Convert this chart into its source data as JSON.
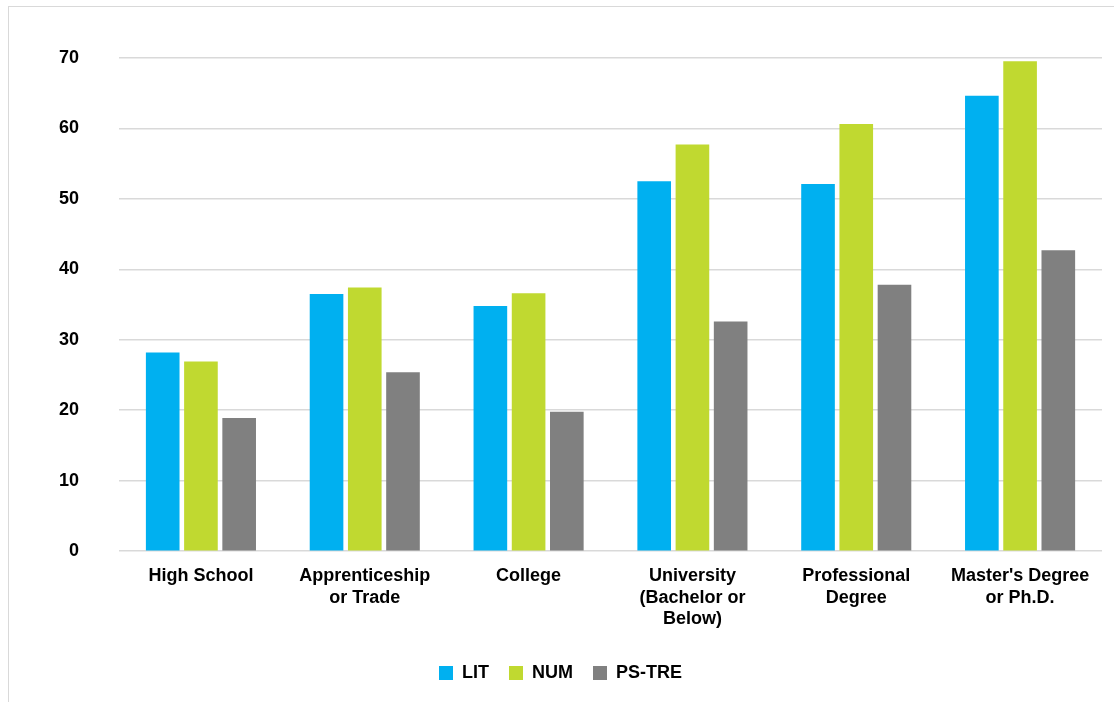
{
  "chart_data": {
    "type": "bar",
    "categories": [
      "High School",
      "Apprenticeship or Trade",
      "College",
      "University (Bachelor or Below)",
      "Professional Degree",
      "Master's Degree or Ph.D."
    ],
    "series": [
      {
        "name": "LIT",
        "color": "#00b0f0",
        "values": [
          28.2,
          36.5,
          34.8,
          52.5,
          52.1,
          64.6
        ]
      },
      {
        "name": "NUM",
        "color": "#c0d930",
        "values": [
          26.9,
          37.4,
          36.6,
          57.7,
          60.6,
          69.5
        ]
      },
      {
        "name": "PS-TRE",
        "color": "#808080",
        "values": [
          18.9,
          25.4,
          19.8,
          32.6,
          37.8,
          42.7
        ]
      }
    ],
    "ylim": [
      0,
      70
    ],
    "yticks": [
      0,
      10,
      20,
      30,
      40,
      50,
      60,
      70
    ],
    "grid": "y",
    "legend": "bottom"
  }
}
